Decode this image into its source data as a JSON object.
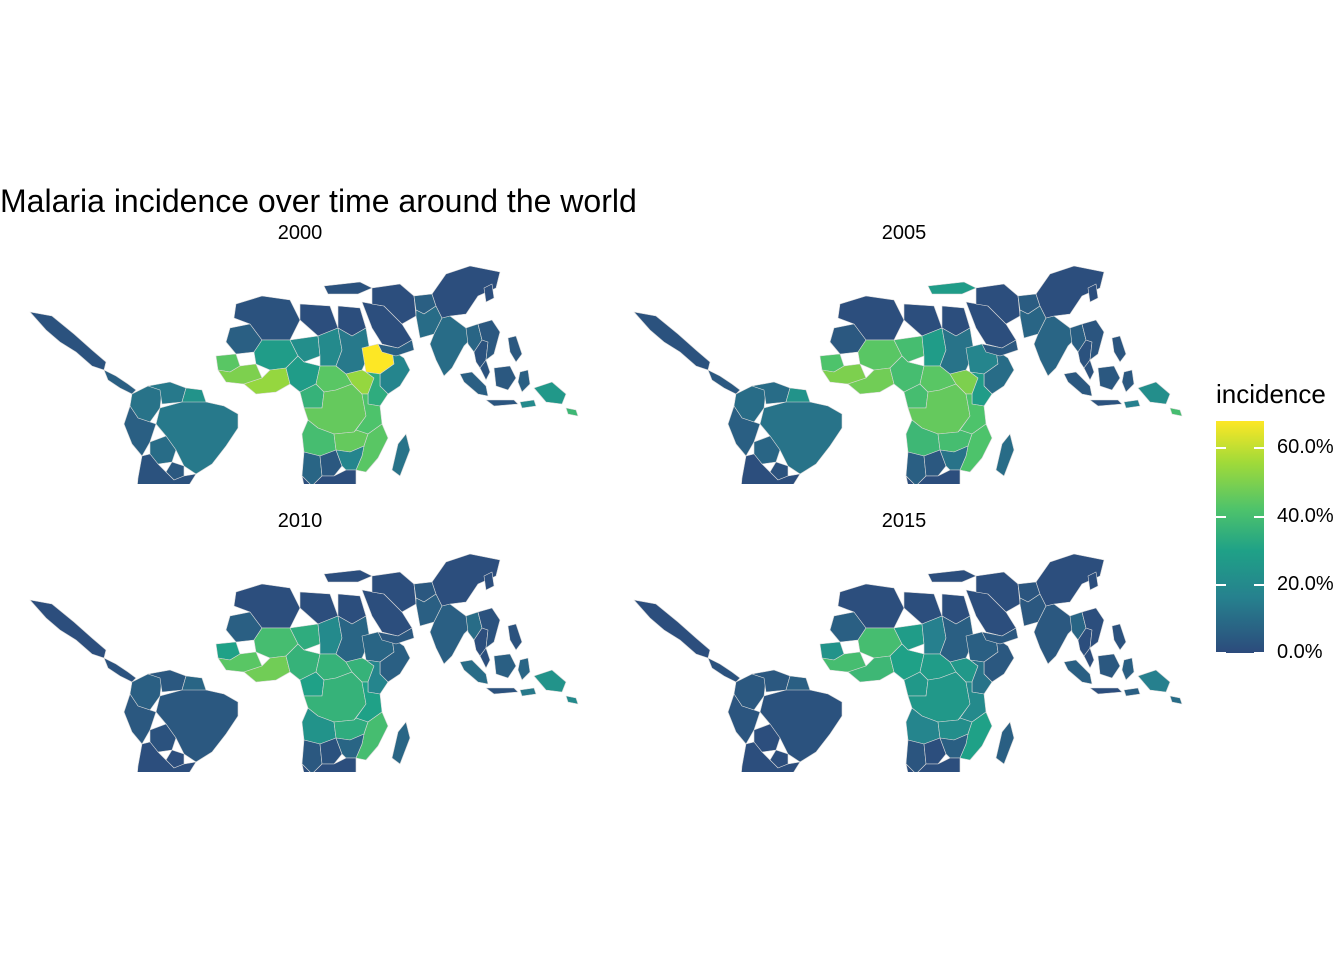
{
  "title": "Malaria incidence over time around the world",
  "panels": [
    {
      "label": "2000",
      "values": {
        "mexico": 2,
        "central_am": 6,
        "colombia": 12,
        "venezuela": 14,
        "guyanas": 24,
        "brazil": 14,
        "peru": 6,
        "bolivia": 10,
        "paraguay": 4,
        "southern_cone": 2,
        "mauritania": 6,
        "mali": 28,
        "algeria": 2,
        "niger": 22,
        "senegal": 44,
        "guinea": 50,
        "coast": 54,
        "nigeria": 28,
        "chad": 20,
        "sudan": 14,
        "ethiopia": 68,
        "horn": 18,
        "cameroon": 36,
        "car": 44,
        "congo": 46,
        "uganda": 54,
        "kenya": 34,
        "tanzania": 42,
        "angola": 40,
        "zambia": 46,
        "mozambique": 44,
        "namibia": 8,
        "botswana": 4,
        "zimbabwe": 18,
        "south_africa": 1,
        "madagascar": 12,
        "libya": 1,
        "egypt": 1,
        "arabia": 1,
        "yemen": 6,
        "iran": 1,
        "afghanistan": 6,
        "pakistan": 10,
        "india": 10,
        "china": 1,
        "myanmar": 8,
        "thailand": 2,
        "indochina": 4,
        "malaysia": 2,
        "sumatra": 6,
        "borneo": 4,
        "java": 3,
        "sulawesi": 6,
        "philippines": 4,
        "png": 26,
        "timor": 20,
        "solomons": 38,
        "korea": 1,
        "turkey": 2
      }
    },
    {
      "label": "2005",
      "values": {
        "mexico": 2,
        "central_am": 4,
        "colombia": 10,
        "venezuela": 10,
        "guyanas": 24,
        "brazil": 12,
        "peru": 6,
        "bolivia": 8,
        "paraguay": 2,
        "southern_cone": 1,
        "mauritania": 4,
        "mali": 44,
        "algeria": 1,
        "niger": 40,
        "senegal": 42,
        "guinea": 50,
        "coast": 48,
        "nigeria": 40,
        "chad": 28,
        "sudan": 12,
        "ethiopia": 18,
        "horn": 10,
        "cameroon": 40,
        "car": 44,
        "congo": 46,
        "uganda": 50,
        "kenya": 28,
        "tanzania": 42,
        "angola": 38,
        "zambia": 40,
        "mozambique": 42,
        "namibia": 6,
        "botswana": 4,
        "zimbabwe": 12,
        "south_africa": 1,
        "madagascar": 10,
        "libya": 1,
        "egypt": 1,
        "arabia": 1,
        "yemen": 4,
        "iran": 1,
        "afghanistan": 5,
        "pakistan": 8,
        "india": 8,
        "china": 1,
        "myanmar": 6,
        "thailand": 2,
        "indochina": 3,
        "malaysia": 2,
        "sumatra": 4,
        "borneo": 4,
        "java": 2,
        "sulawesi": 4,
        "philippines": 3,
        "png": 22,
        "timor": 16,
        "solomons": 40,
        "korea": 1,
        "turkey": 28
      }
    },
    {
      "label": "2010",
      "values": {
        "mexico": 1,
        "central_am": 2,
        "colombia": 6,
        "venezuela": 4,
        "guyanas": 8,
        "brazil": 4,
        "peru": 4,
        "bolivia": 2,
        "paraguay": 1,
        "southern_cone": 1,
        "mauritania": 6,
        "mali": 40,
        "algeria": 1,
        "niger": 34,
        "senegal": 30,
        "guinea": 44,
        "coast": 48,
        "nigeria": 36,
        "chad": 20,
        "sudan": 8,
        "ethiopia": 8,
        "horn": 6,
        "cameroon": 30,
        "car": 36,
        "congo": 36,
        "uganda": 36,
        "kenya": 18,
        "tanzania": 30,
        "angola": 24,
        "zambia": 34,
        "mozambique": 40,
        "namibia": 4,
        "botswana": 2,
        "zimbabwe": 8,
        "south_africa": 1,
        "madagascar": 8,
        "libya": 1,
        "egypt": 1,
        "arabia": 1,
        "yemen": 4,
        "iran": 1,
        "afghanistan": 4,
        "pakistan": 6,
        "india": 6,
        "china": 1,
        "myanmar": 10,
        "thailand": 1,
        "indochina": 2,
        "malaysia": 1,
        "sumatra": 10,
        "borneo": 6,
        "java": 2,
        "sulawesi": 8,
        "philippines": 2,
        "png": 24,
        "timor": 14,
        "solomons": 20,
        "korea": 1,
        "turkey": 1
      }
    },
    {
      "label": "2015",
      "values": {
        "mexico": 1,
        "central_am": 2,
        "colombia": 4,
        "venezuela": 4,
        "guyanas": 6,
        "brazil": 2,
        "peru": 3,
        "bolivia": 1,
        "paraguay": 1,
        "southern_cone": 1,
        "mauritania": 6,
        "mali": 40,
        "algeria": 1,
        "niger": 28,
        "senegal": 24,
        "guinea": 40,
        "coast": 38,
        "nigeria": 30,
        "chad": 16,
        "sudan": 6,
        "ethiopia": 6,
        "horn": 4,
        "cameroon": 26,
        "car": 28,
        "congo": 26,
        "uganda": 26,
        "kenya": 12,
        "tanzania": 20,
        "angola": 18,
        "zambia": 22,
        "mozambique": 30,
        "namibia": 3,
        "botswana": 1,
        "zimbabwe": 6,
        "south_africa": 1,
        "madagascar": 6,
        "libya": 1,
        "egypt": 1,
        "arabia": 1,
        "yemen": 4,
        "iran": 1,
        "afghanistan": 3,
        "pakistan": 4,
        "india": 4,
        "china": 1,
        "myanmar": 8,
        "thailand": 1,
        "indochina": 1,
        "malaysia": 1,
        "sumatra": 6,
        "borneo": 4,
        "java": 1,
        "sulawesi": 6,
        "philippines": 2,
        "png": 16,
        "timor": 6,
        "solomons": 10,
        "korea": 1,
        "turkey": 1
      }
    }
  ],
  "legend": {
    "title": "incidence",
    "min": 0,
    "max": 68,
    "ticks": [
      {
        "value": 0,
        "label": "0.0%"
      },
      {
        "value": 20,
        "label": "20.0%"
      },
      {
        "value": 40,
        "label": "40.0%"
      },
      {
        "value": 60,
        "label": "60.0%"
      }
    ]
  },
  "colors": {
    "scale": [
      "#2c4b7c",
      "#26818e",
      "#1fa187",
      "#4ec36b",
      "#a0da39",
      "#fde725"
    ],
    "border": "#d9d9d9"
  }
}
